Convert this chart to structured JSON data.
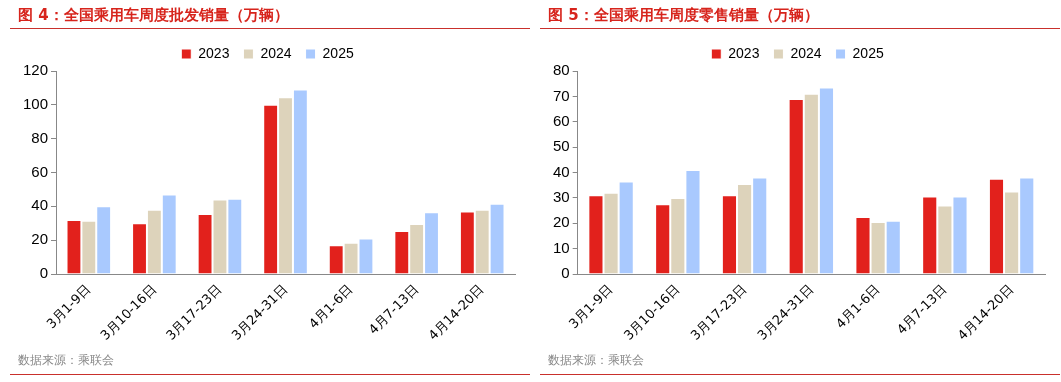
{
  "chart_data": [
    {
      "type": "bar",
      "title": "图 4：全国乘用车周度批发销量（万辆）",
      "categories": [
        "3月1-9日",
        "3月10-16日",
        "3月17-23日",
        "3月24-31日",
        "4月1-6日",
        "4月7-13日",
        "4月14-20日"
      ],
      "series": [
        {
          "name": "2023",
          "color": "#e2211c",
          "values": [
            32,
            30,
            35.5,
            100,
            17,
            25.5,
            37
          ]
        },
        {
          "name": "2024",
          "color": "#ddd3bb",
          "values": [
            31.5,
            38,
            44,
            104.5,
            18.5,
            29.5,
            38
          ]
        },
        {
          "name": "2025",
          "color": "#a9c9fe",
          "values": [
            40,
            47,
            44.5,
            109,
            21,
            36.5,
            41.5
          ]
        }
      ],
      "ylim": [
        0,
        120
      ],
      "yticks": [
        0,
        20,
        40,
        60,
        80,
        100,
        120
      ],
      "grid": false,
      "legend": "top",
      "annotations": [
        "数据来源：乘联会"
      ]
    },
    {
      "type": "bar",
      "title": "图 5：全国乘用车周度零售销量（万辆）",
      "categories": [
        "3月1-9日",
        "3月10-16日",
        "3月17-23日",
        "3月24-31日",
        "4月1-6日",
        "4月7-13日",
        "4月14-20日"
      ],
      "series": [
        {
          "name": "2023",
          "color": "#e2211c",
          "values": [
            31,
            27.5,
            31,
            69,
            22.5,
            30.5,
            37.5
          ]
        },
        {
          "name": "2024",
          "color": "#ddd3bb",
          "values": [
            32,
            30,
            35.5,
            71,
            20.5,
            27,
            32.5
          ]
        },
        {
          "name": "2025",
          "color": "#a9c9fe",
          "values": [
            36.5,
            41,
            38,
            73.5,
            21,
            30.5,
            38
          ]
        }
      ],
      "ylim": [
        0,
        80
      ],
      "yticks": [
        0,
        10,
        20,
        30,
        40,
        50,
        60,
        70,
        80
      ],
      "grid": false,
      "legend": "top",
      "annotations": [
        "数据来源：乘联会"
      ]
    }
  ]
}
